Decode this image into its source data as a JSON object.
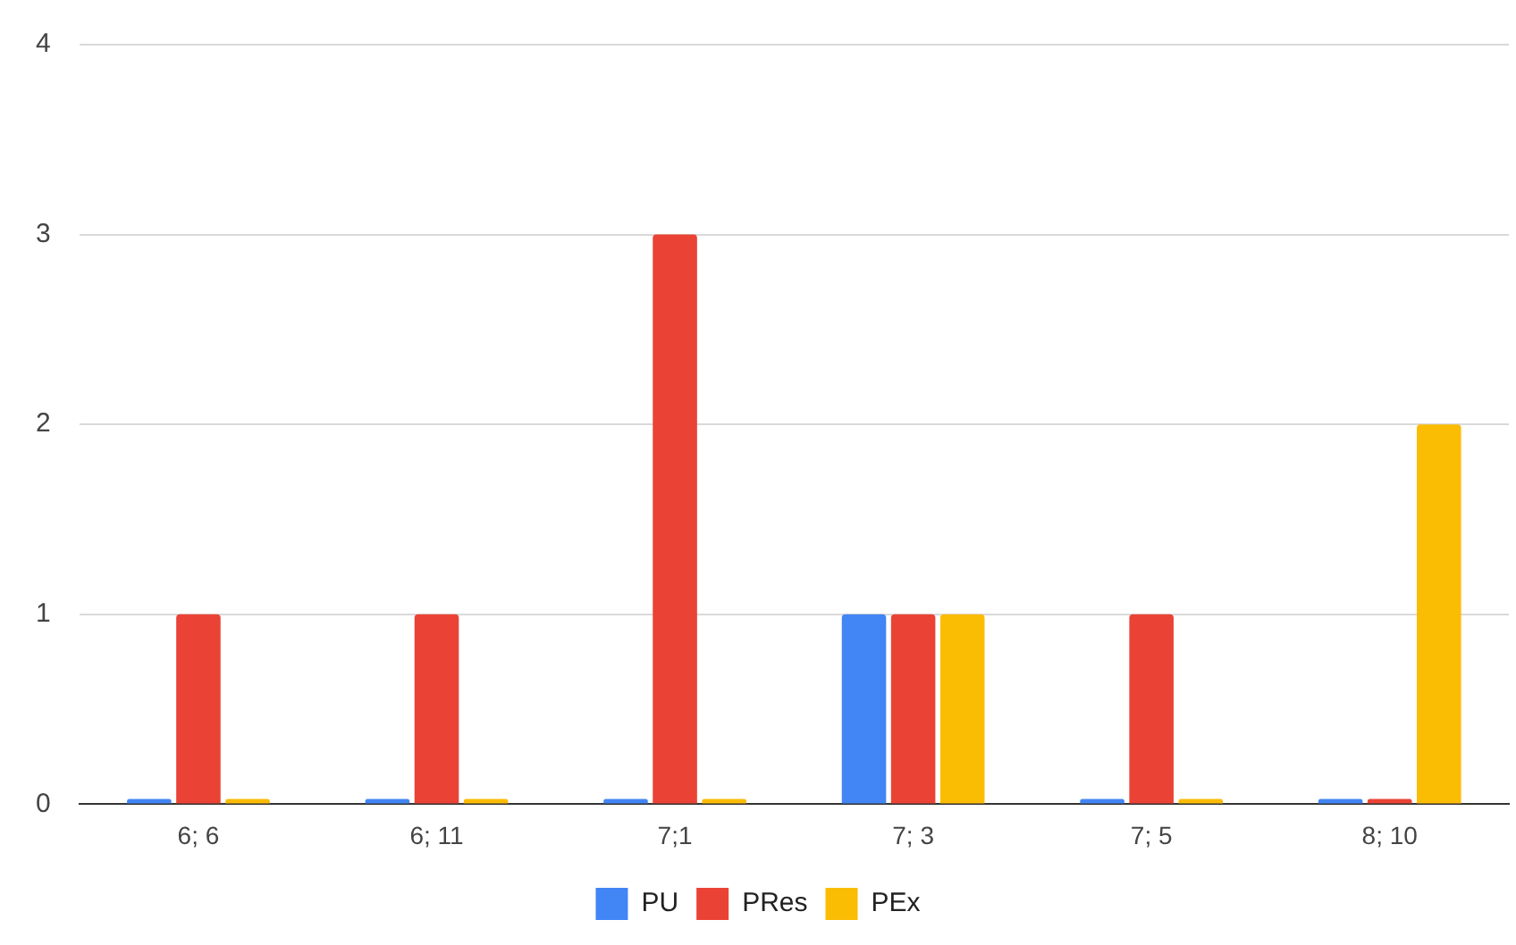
{
  "chart_data": {
    "type": "bar",
    "categories": [
      "6; 6",
      "6; 11",
      "7;1",
      "7; 3",
      "7; 5",
      "8; 10"
    ],
    "series": [
      {
        "name": "PU",
        "color": "#4285f4",
        "values": [
          0,
          0,
          0,
          1,
          0,
          0
        ]
      },
      {
        "name": "PRes",
        "color": "#ea4335",
        "values": [
          1,
          1,
          3,
          1,
          1,
          0
        ]
      },
      {
        "name": "PEx",
        "color": "#fbbc04",
        "values": [
          0,
          0,
          0,
          1,
          0,
          2
        ]
      }
    ],
    "ylim": [
      0,
      4
    ],
    "yticks": [
      0,
      1,
      2,
      3,
      4
    ],
    "grid": "y",
    "legend": "bottom"
  }
}
